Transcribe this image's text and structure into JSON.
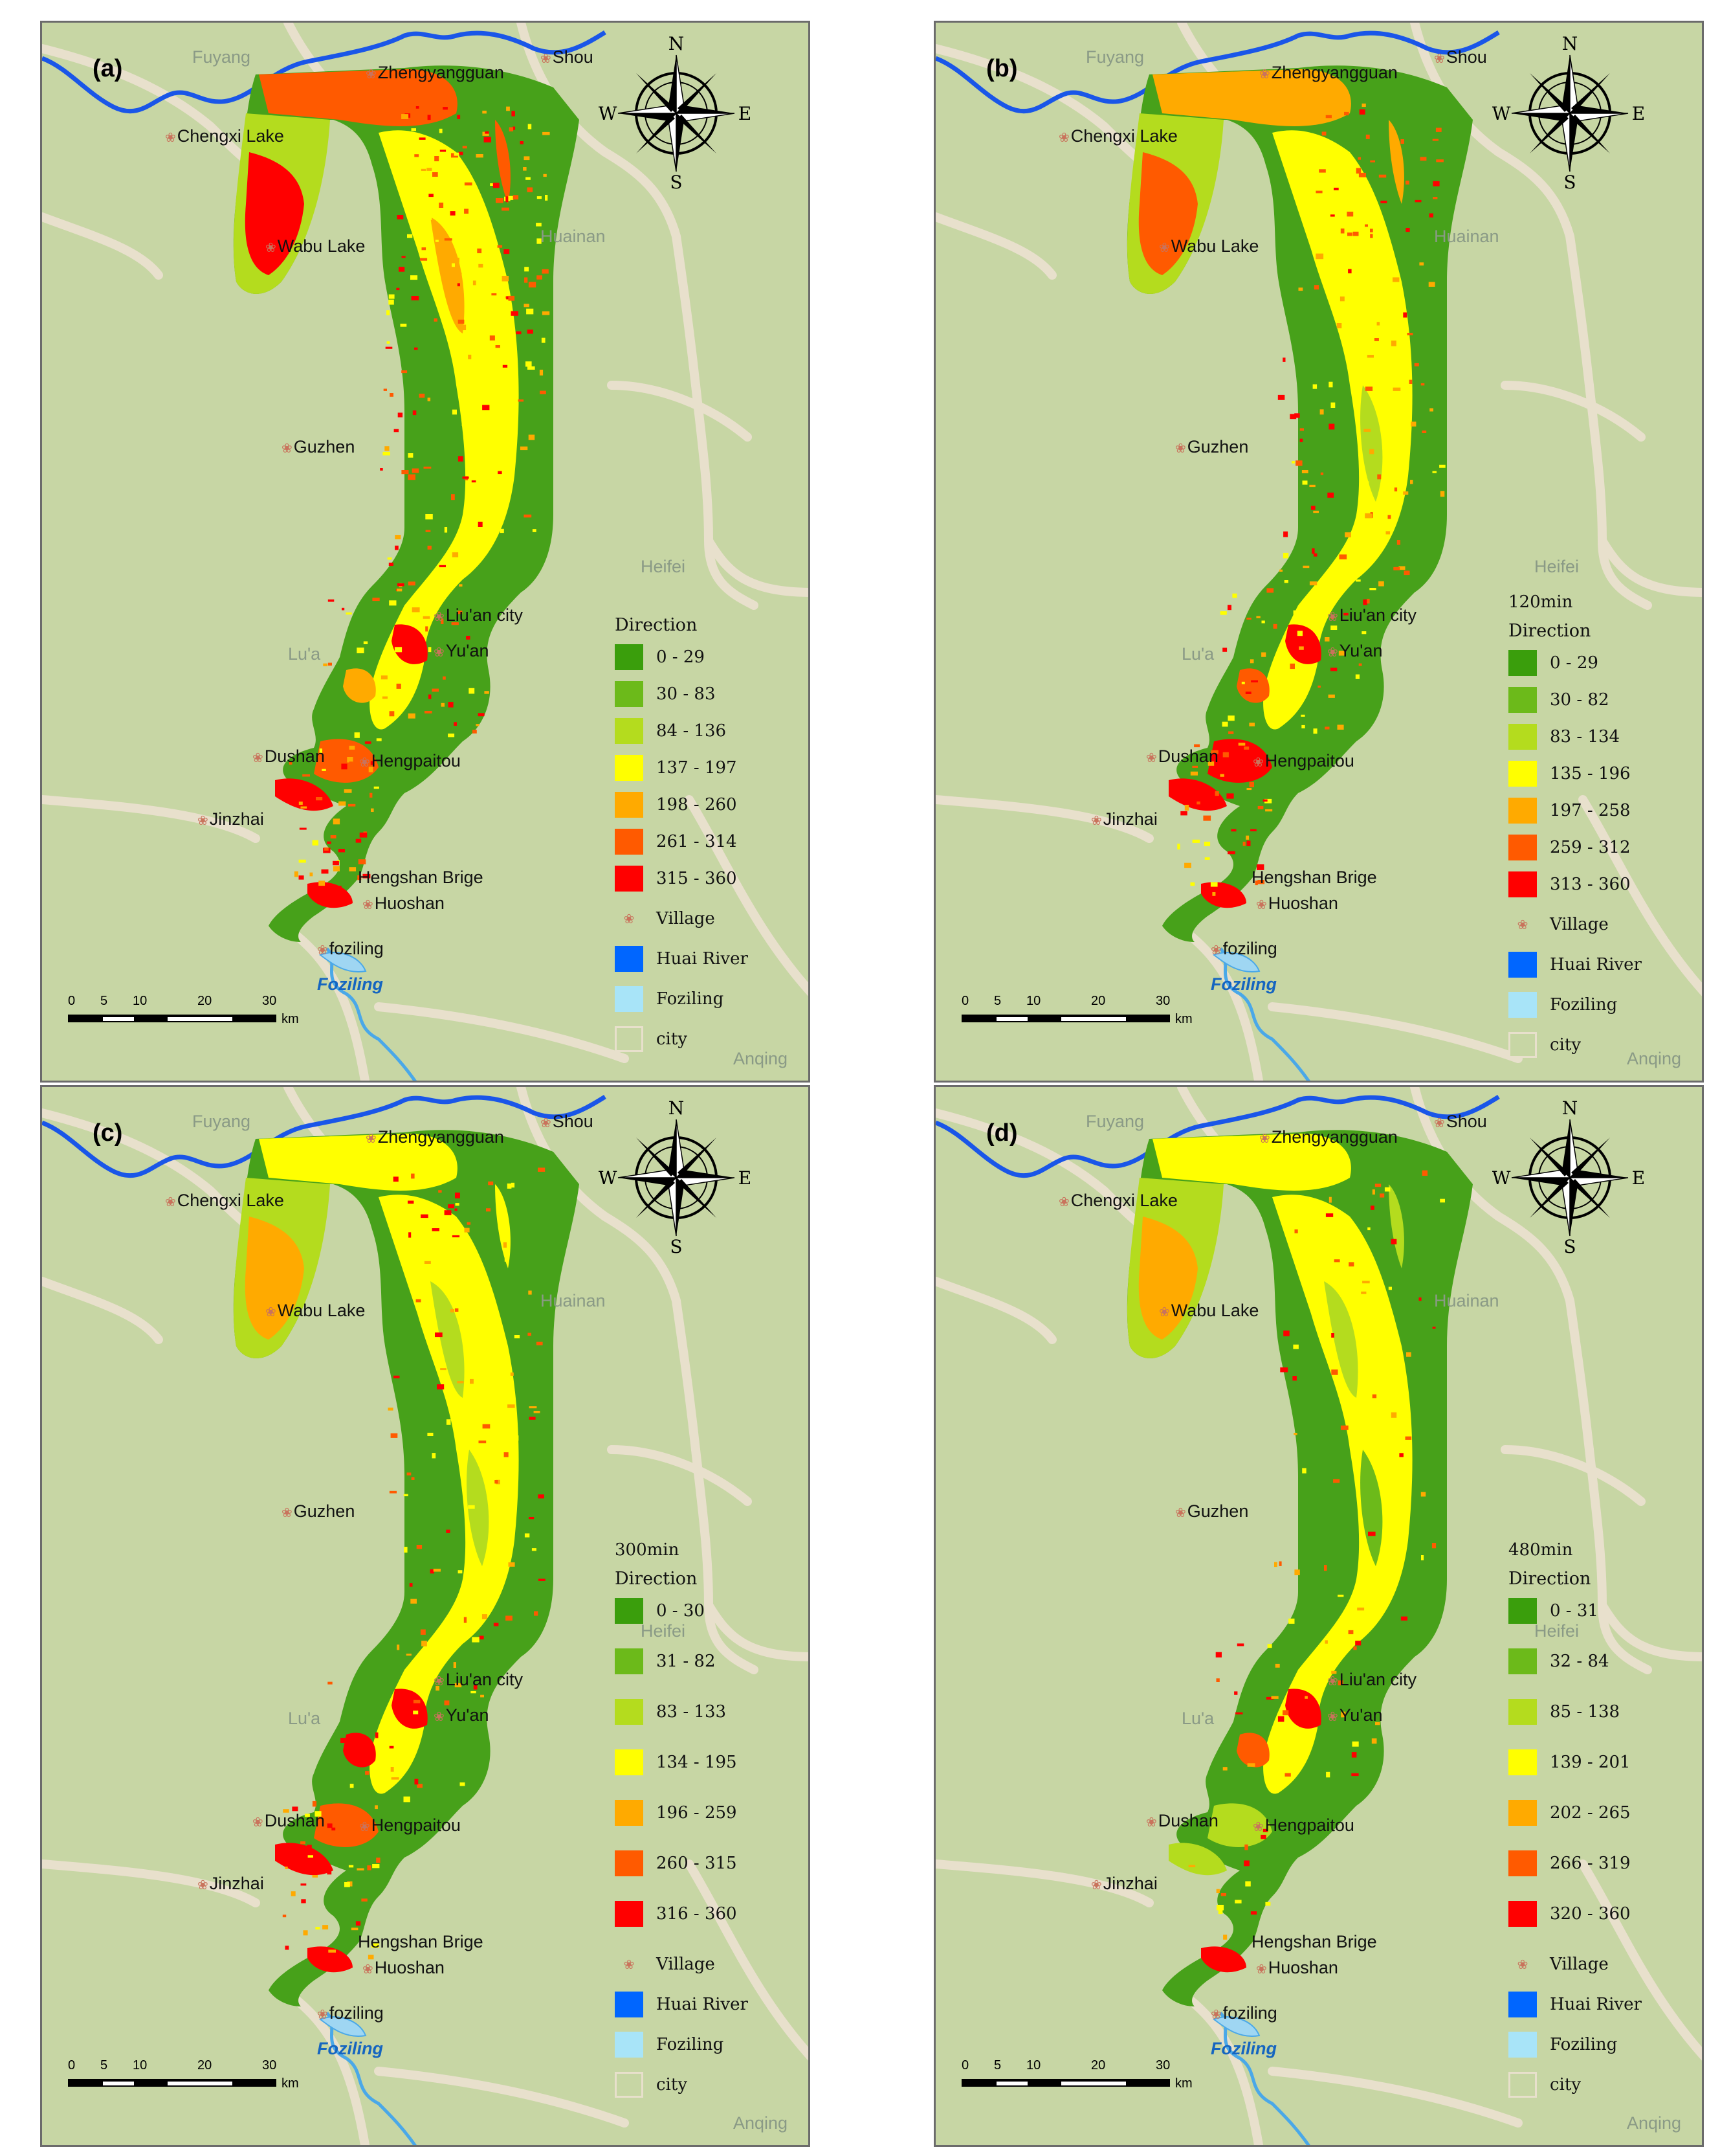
{
  "panels": [
    {
      "id": "a",
      "label": "(a)",
      "time": "",
      "ranges": [
        "0 - 29",
        "30 - 83",
        "84 - 136",
        "137 - 197",
        "198 - 260",
        "261 - 314",
        "315 - 360"
      ]
    },
    {
      "id": "b",
      "label": "(b)",
      "time": "120min",
      "ranges": [
        "0 - 29",
        "30 - 82",
        "83 - 134",
        "135 - 196",
        "197 - 258",
        "259 - 312",
        "313 - 360"
      ]
    },
    {
      "id": "c",
      "label": "(c)",
      "time": "300min",
      "ranges": [
        "0 - 30",
        "31 - 82",
        "83 - 133",
        "134 - 195",
        "196 - 259",
        "260 - 315",
        "316 - 360"
      ]
    },
    {
      "id": "d",
      "label": "(d)",
      "time": "480min",
      "ranges": [
        "0 - 31",
        "32 - 84",
        "85 - 138",
        "139 - 201",
        "202 - 265",
        "266 - 319",
        "320 - 360"
      ]
    }
  ],
  "legend": {
    "title": "Direction",
    "colors": [
      "#3a9e0c",
      "#6cba1a",
      "#b4dc1e",
      "#ffff00",
      "#ffaa00",
      "#ff5a00",
      "#ff0000"
    ],
    "village_label": "Village",
    "river_label": "Huai River",
    "river_color": "#0066ff",
    "reservoir_label": "Foziling",
    "reservoir_color": "#a8e4f8",
    "city_label": "city",
    "village_color": "#c9735c"
  },
  "places": {
    "fuyang": "Fuyang",
    "shou": "Shou",
    "zhengyangguan": "Zhengyangguan",
    "chengxi": "Chengxi Lake",
    "wabu": "Wabu Lake",
    "huainan": "Huainan",
    "guzhen": "Guzhen",
    "heifei": "Heifei",
    "liuan": "Liu'an city",
    "yuan": "Yu'an",
    "lua": "Lu'a",
    "dushan": "Dushan",
    "hengpaitou": "Hengpaitou",
    "jinzhai": "Jinzhai",
    "hengshan": "Hengshan Brige",
    "huoshan": "Huoshan",
    "foziling_town": "foziling",
    "foziling_res": "Foziling",
    "anqing": "Anqing"
  },
  "compass": {
    "n": "N",
    "s": "S",
    "e": "E",
    "w": "W"
  },
  "scalebar": {
    "ticks": [
      "0",
      "5",
      "10",
      "20",
      "30"
    ],
    "unit": "km"
  }
}
